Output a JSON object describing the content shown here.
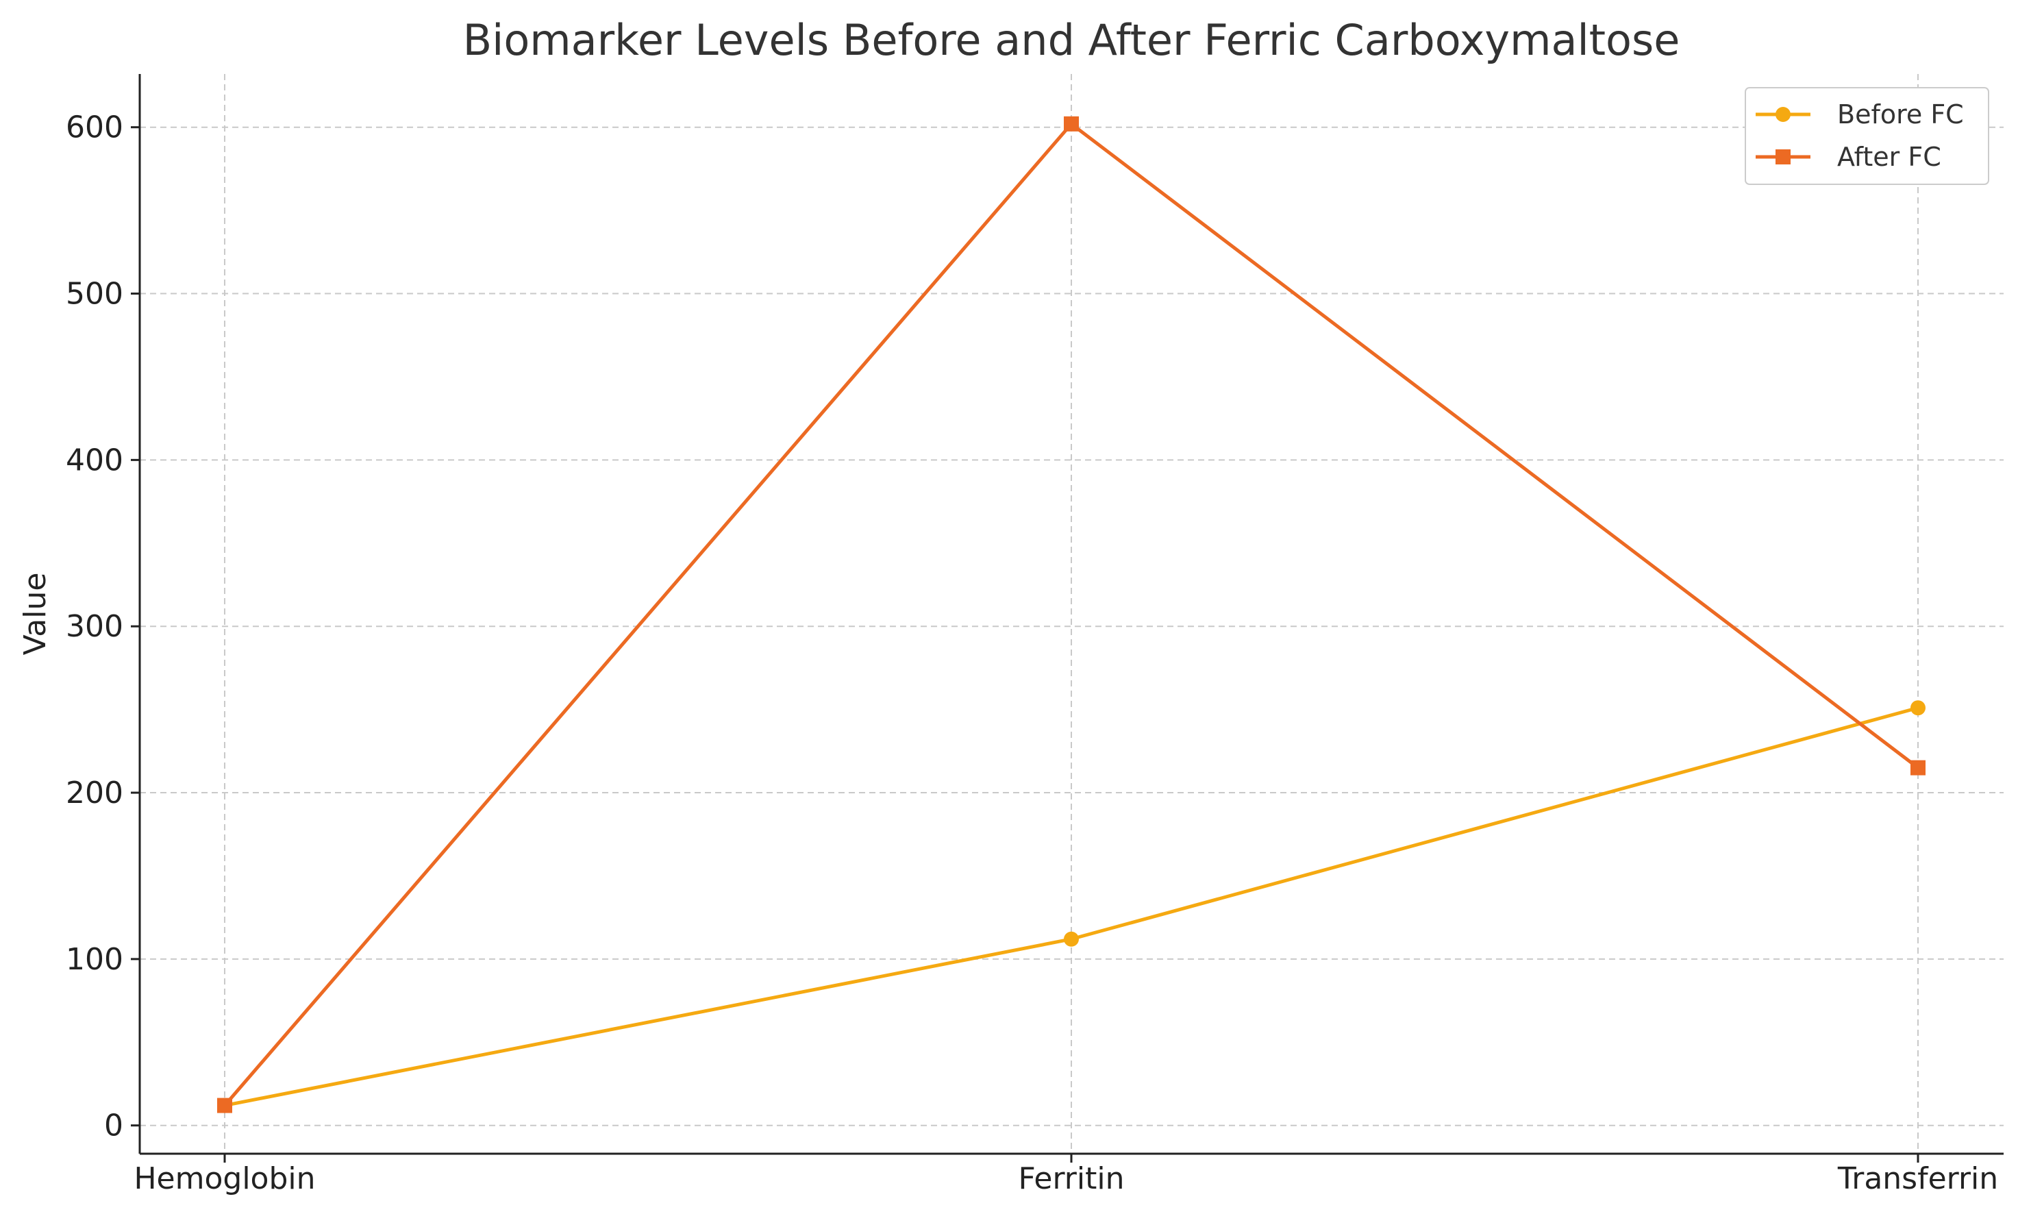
{
  "chart_data": {
    "type": "line",
    "title": "Biomarker Levels Before and After Ferric Carboxymaltose",
    "xlabel": "",
    "ylabel": "Value",
    "categories": [
      "Hemoglobin",
      "Ferritin",
      "Transferrin"
    ],
    "ylim": [
      -17,
      632
    ],
    "yticks": [
      0,
      100,
      200,
      300,
      400,
      500,
      600
    ],
    "grid": true,
    "legend_position": "top-right",
    "series": [
      {
        "name": "Before FC",
        "values": [
          12,
          112,
          251
        ],
        "color": "#f5a911",
        "marker": "circle"
      },
      {
        "name": "After FC",
        "values": [
          12,
          602,
          215
        ],
        "color": "#ec6a23",
        "marker": "square"
      }
    ]
  }
}
